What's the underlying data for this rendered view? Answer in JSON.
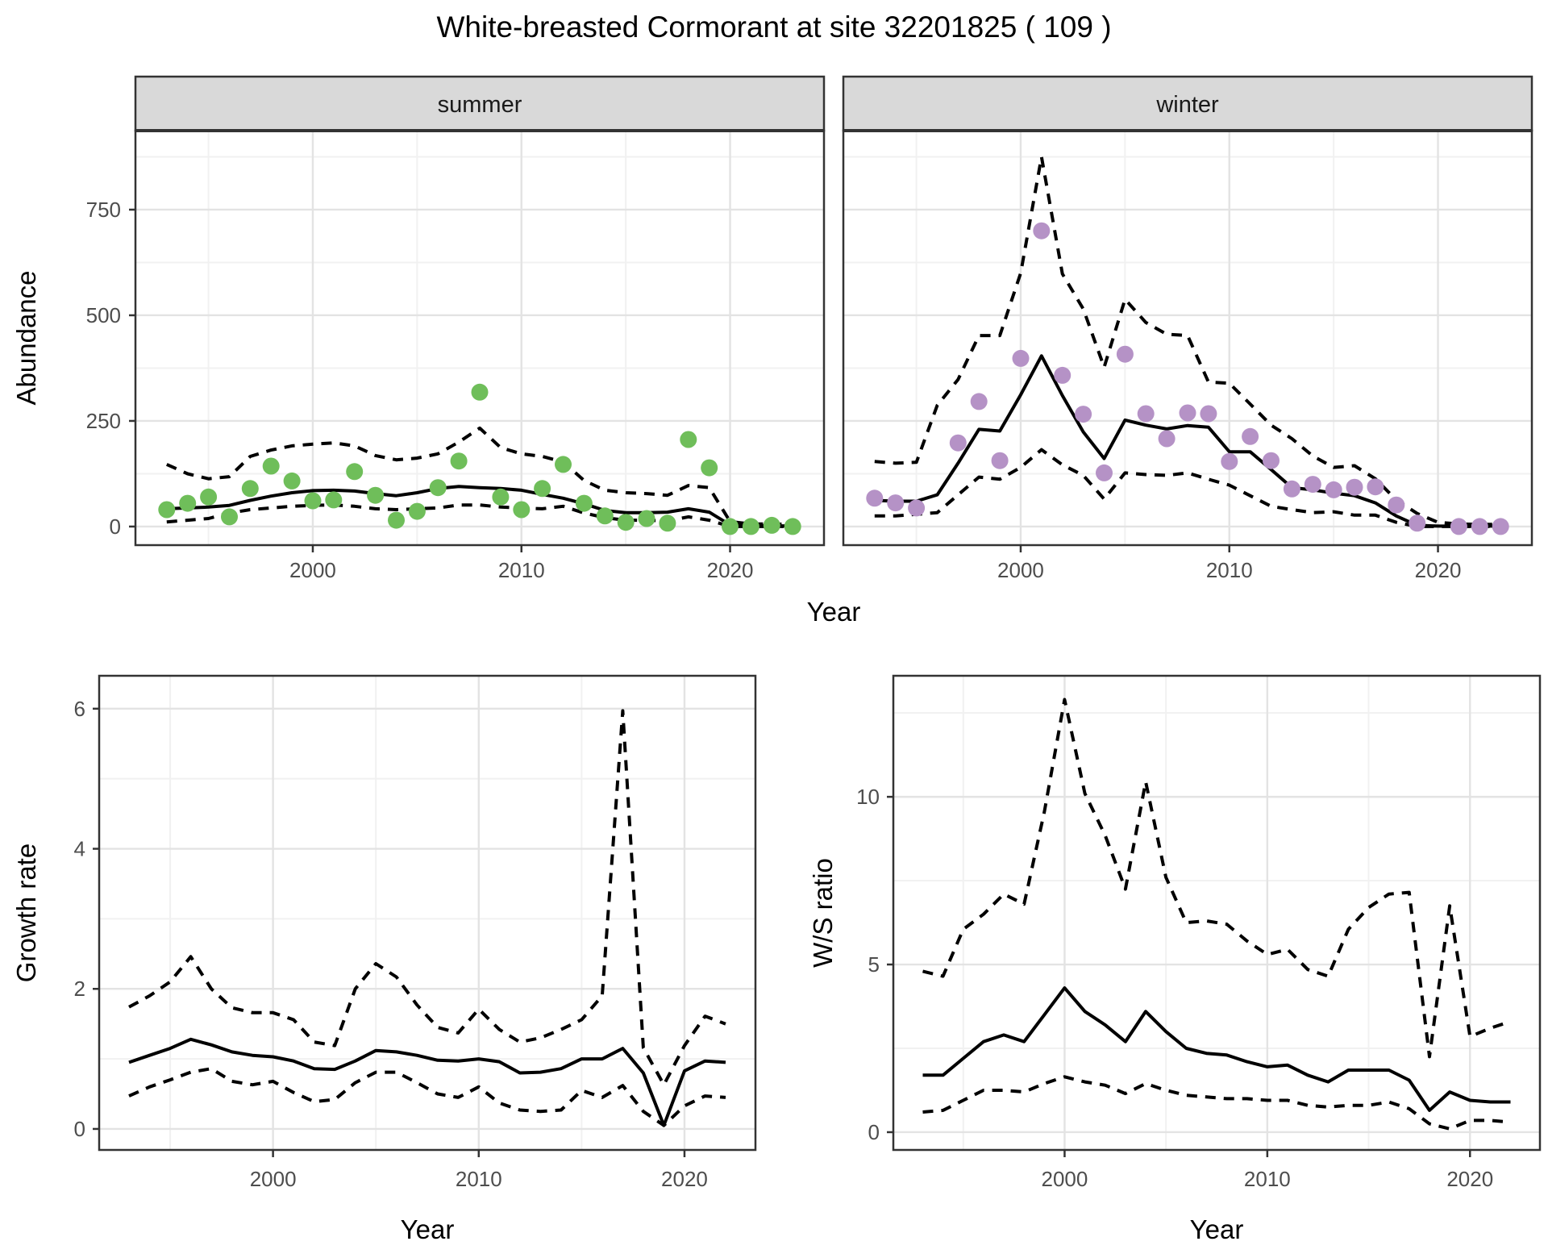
{
  "title": "White-breasted Cormorant at site 32201825 ( 109 )",
  "colors": {
    "summer_point": "#6FBE5A",
    "winter_point": "#B592C6",
    "line": "#000000",
    "grid_major": "#e3e3e3",
    "grid_minor": "#f1f1f1",
    "panel_border": "#333333",
    "strip_bg": "#d9d9d9",
    "tick_label": "#4d4d4d",
    "background": "#ffffff"
  },
  "chart_data": [
    {
      "id": "abundance_by_season",
      "type": "scatter",
      "xlabel": "Year",
      "ylabel": "Abundance",
      "facets": [
        "summer",
        "winter"
      ],
      "legend_position": "none",
      "grid": true,
      "x_years": [
        1993,
        1994,
        1995,
        1996,
        1997,
        1998,
        1999,
        2000,
        2001,
        2002,
        2003,
        2004,
        2005,
        2006,
        2007,
        2008,
        2009,
        2010,
        2011,
        2012,
        2013,
        2014,
        2015,
        2016,
        2017,
        2018,
        2019,
        2020,
        2021,
        2022,
        2023
      ],
      "xticks": [
        2000,
        2010,
        2020
      ],
      "yticks": [
        0,
        250,
        500,
        750
      ],
      "xlim": [
        1991.5,
        2024.5
      ],
      "ylim": [
        -44,
        937
      ],
      "line_styles": {
        "fit": "solid",
        "ci": "dashed"
      },
      "series": {
        "summer": {
          "point_color": "#6FBE5A",
          "points": [
            40,
            55,
            70,
            23,
            90,
            143,
            108,
            61,
            63,
            130,
            74,
            15,
            36,
            92,
            155,
            318,
            70,
            40,
            90,
            147,
            55,
            25,
            10,
            19,
            8,
            206,
            139,
            0,
            0,
            3,
            0
          ],
          "fit": [
            42,
            44,
            46,
            50,
            62,
            72,
            80,
            85,
            86,
            84,
            78,
            73,
            80,
            90,
            95,
            92,
            90,
            86,
            76,
            67,
            54,
            38,
            33,
            33,
            34,
            42,
            34,
            4,
            2,
            2,
            1
          ],
          "ci_upper": [
            147,
            125,
            113,
            118,
            166,
            181,
            191,
            195,
            198,
            191,
            168,
            158,
            162,
            172,
            200,
            233,
            187,
            172,
            166,
            153,
            109,
            86,
            80,
            78,
            74,
            97,
            92,
            12,
            6,
            6,
            5
          ],
          "ci_lower": [
            11,
            15,
            19,
            32,
            40,
            44,
            48,
            50,
            51,
            48,
            42,
            40,
            42,
            44,
            51,
            51,
            46,
            44,
            42,
            48,
            32,
            21,
            15,
            15,
            13,
            23,
            15,
            0,
            0,
            0,
            0
          ]
        },
        "winter": {
          "point_color": "#B592C6",
          "points": [
            67,
            56,
            44,
            null,
            198,
            296,
            156,
            398,
            700,
            358,
            266,
            127,
            408,
            267,
            208,
            269,
            267,
            154,
            213,
            156,
            89,
            100,
            87,
            93,
            94,
            51,
            8,
            null,
            0,
            0,
            0
          ],
          "fit": [
            62,
            60,
            60,
            75,
            150,
            230,
            226,
            312,
            404,
            310,
            224,
            161,
            252,
            240,
            231,
            239,
            235,
            177,
            177,
            135,
            92,
            87,
            79,
            73,
            56,
            25,
            3,
            1,
            1,
            1,
            1
          ],
          "ci_upper": [
            154,
            150,
            152,
            287,
            348,
            452,
            452,
            600,
            875,
            598,
            515,
            377,
            538,
            483,
            455,
            452,
            342,
            339,
            290,
            240,
            208,
            167,
            140,
            144,
            113,
            63,
            31,
            10,
            6,
            5,
            5
          ],
          "ci_lower": [
            25,
            25,
            29,
            33,
            75,
            117,
            112,
            140,
            182,
            146,
            121,
            65,
            127,
            123,
            121,
            127,
            112,
            98,
            73,
            48,
            40,
            33,
            35,
            27,
            27,
            10,
            0,
            0,
            0,
            0,
            0
          ]
        }
      }
    },
    {
      "id": "growth_rate",
      "type": "line",
      "xlabel": "Year",
      "ylabel": "Growth rate",
      "grid": true,
      "x_years": [
        1993,
        1994,
        1995,
        1996,
        1997,
        1998,
        1999,
        2000,
        2001,
        2002,
        2003,
        2004,
        2005,
        2006,
        2007,
        2008,
        2009,
        2010,
        2011,
        2012,
        2013,
        2014,
        2015,
        2016,
        2017,
        2018,
        2019,
        2020,
        2021,
        2022
      ],
      "xticks": [
        2000,
        2010,
        2020
      ],
      "yticks": [
        0,
        2,
        4,
        6
      ],
      "xlim": [
        1991.55,
        2023.45
      ],
      "ylim": [
        -0.3,
        6.47
      ],
      "line_styles": {
        "fit": "solid",
        "ci": "dashed"
      },
      "fit": [
        0.95,
        1.05,
        1.15,
        1.28,
        1.2,
        1.1,
        1.05,
        1.03,
        0.97,
        0.86,
        0.85,
        0.97,
        1.12,
        1.1,
        1.05,
        0.98,
        0.97,
        1.0,
        0.96,
        0.8,
        0.81,
        0.86,
        1.0,
        1.0,
        1.15,
        0.8,
        0.05,
        0.83,
        0.97,
        0.95
      ],
      "ci_upper": [
        1.74,
        1.9,
        2.1,
        2.46,
        2.0,
        1.73,
        1.66,
        1.66,
        1.56,
        1.24,
        1.19,
        2.0,
        2.36,
        2.17,
        1.77,
        1.45,
        1.37,
        1.71,
        1.42,
        1.24,
        1.3,
        1.42,
        1.56,
        1.9,
        5.97,
        1.16,
        0.63,
        1.19,
        1.61,
        1.5
      ],
      "ci_lower": [
        0.47,
        0.6,
        0.7,
        0.81,
        0.86,
        0.68,
        0.63,
        0.68,
        0.52,
        0.39,
        0.42,
        0.66,
        0.81,
        0.81,
        0.66,
        0.5,
        0.45,
        0.6,
        0.37,
        0.27,
        0.25,
        0.27,
        0.55,
        0.45,
        0.62,
        0.25,
        0.05,
        0.33,
        0.47,
        0.45
      ]
    },
    {
      "id": "winter_summer_ratio",
      "type": "line",
      "xlabel": "Year",
      "ylabel": "W/S ratio",
      "grid": true,
      "x_years": [
        1993,
        1994,
        1995,
        1996,
        1997,
        1998,
        1999,
        2000,
        2001,
        2002,
        2003,
        2004,
        2005,
        2006,
        2007,
        2008,
        2009,
        2010,
        2011,
        2012,
        2013,
        2014,
        2015,
        2016,
        2017,
        2018,
        2019,
        2020,
        2021,
        2022
      ],
      "xticks": [
        2000,
        2010,
        2020
      ],
      "yticks": [
        0,
        5,
        10
      ],
      "xlim": [
        1991.55,
        2023.45
      ],
      "ylim": [
        -0.53,
        13.61
      ],
      "line_styles": {
        "fit": "solid",
        "ci": "dashed"
      },
      "fit": [
        1.7,
        1.7,
        2.2,
        2.7,
        2.9,
        2.7,
        3.5,
        4.3,
        3.6,
        3.2,
        2.7,
        3.6,
        3.0,
        2.5,
        2.35,
        2.3,
        2.1,
        1.95,
        2.0,
        1.7,
        1.5,
        1.85,
        1.85,
        1.85,
        1.55,
        0.65,
        1.2,
        0.95,
        0.9,
        0.9
      ],
      "ci_upper": [
        4.8,
        4.65,
        6.05,
        6.5,
        7.1,
        6.8,
        9.55,
        12.9,
        10.1,
        8.85,
        7.25,
        10.45,
        7.6,
        6.25,
        6.3,
        6.2,
        5.7,
        5.3,
        5.45,
        4.85,
        4.65,
        6.05,
        6.7,
        7.1,
        7.15,
        2.25,
        6.75,
        2.85,
        3.1,
        3.3
      ],
      "ci_lower": [
        0.6,
        0.65,
        0.95,
        1.25,
        1.25,
        1.2,
        1.45,
        1.65,
        1.5,
        1.4,
        1.15,
        1.45,
        1.25,
        1.1,
        1.05,
        1.0,
        1.0,
        0.95,
        0.95,
        0.8,
        0.75,
        0.8,
        0.8,
        0.9,
        0.7,
        0.25,
        0.1,
        0.35,
        0.35,
        0.3
      ]
    }
  ]
}
